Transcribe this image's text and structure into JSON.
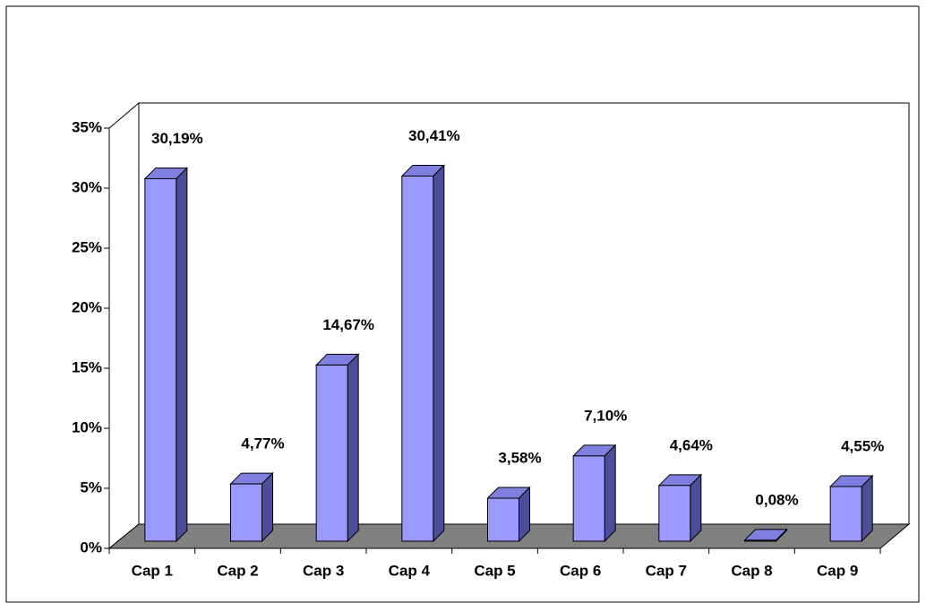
{
  "chart_data": {
    "type": "bar3d",
    "categories": [
      "Cap 1",
      "Cap 2",
      "Cap 3",
      "Cap 4",
      "Cap 5",
      "Cap 6",
      "Cap 7",
      "Cap 8",
      "Cap 9"
    ],
    "values": [
      30.19,
      4.77,
      14.67,
      30.41,
      3.58,
      7.1,
      4.64,
      0.08,
      4.55
    ],
    "value_labels": [
      "30,19%",
      "4,77%",
      "14,67%",
      "30,41%",
      "3,58%",
      "7,10%",
      "4,64%",
      "0,08%",
      "4,55%"
    ],
    "color": "#9999ff",
    "ylim": [
      0,
      35
    ],
    "yticks": [
      {
        "value": 0,
        "label": "0%"
      },
      {
        "value": 5,
        "label": "5%"
      },
      {
        "value": 10,
        "label": "10%"
      },
      {
        "value": 15,
        "label": "15%"
      },
      {
        "value": 20,
        "label": "20%"
      },
      {
        "value": 25,
        "label": "25%"
      },
      {
        "value": 30,
        "label": "30%"
      },
      {
        "value": 35,
        "label": "35%"
      }
    ],
    "grid": false
  }
}
